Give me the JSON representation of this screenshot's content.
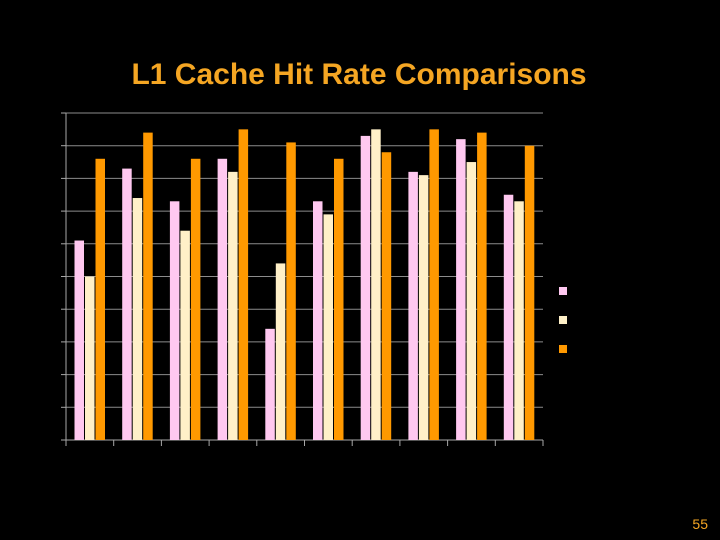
{
  "slide": {
    "title": "L1 Cache Hit Rate Comparisons",
    "page_number": "55"
  },
  "colors": {
    "background": "#000000",
    "title": "#F5A623",
    "axis": "#A8A8A8",
    "gridline": "#8C8C8C"
  },
  "chart_data": {
    "type": "bar",
    "title": "",
    "xlabel": "",
    "ylabel": "",
    "ylim": [
      0,
      10
    ],
    "grid": true,
    "legend_position": "right",
    "categories": [
      "",
      "",
      "",
      "",
      "",
      "",
      "",
      "",
      "",
      ""
    ],
    "series": [
      {
        "color": "#FFC8F0",
        "values": [
          6.1,
          8.3,
          7.3,
          8.6,
          3.4,
          7.3,
          9.3,
          8.2,
          9.2,
          7.5
        ]
      },
      {
        "color": "#FFF0C8",
        "values": [
          5.0,
          7.4,
          6.4,
          8.2,
          5.4,
          6.9,
          9.5,
          8.1,
          8.5,
          7.3
        ]
      },
      {
        "color": "#FF9900",
        "values": [
          8.6,
          9.4,
          8.6,
          9.5,
          9.1,
          8.6,
          8.8,
          9.5,
          9.4,
          9.0
        ]
      }
    ]
  }
}
